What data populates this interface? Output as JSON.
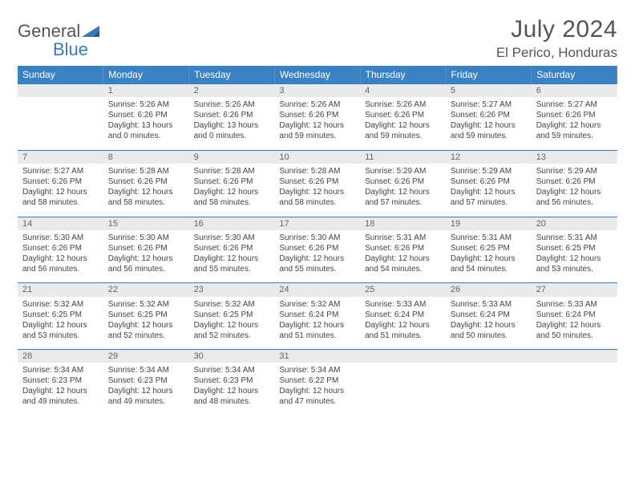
{
  "logo": {
    "part1": "General",
    "part2": "Blue"
  },
  "title": "July 2024",
  "location": "El Perico, Honduras",
  "colors": {
    "header_bg": "#3a82c4",
    "accent_line": "#3a7ab8",
    "daynum_bg": "#e9eaeb",
    "text": "#444",
    "muted": "#666"
  },
  "weekdays": [
    "Sunday",
    "Monday",
    "Tuesday",
    "Wednesday",
    "Thursday",
    "Friday",
    "Saturday"
  ],
  "weeks": [
    {
      "nums": [
        "",
        "1",
        "2",
        "3",
        "4",
        "5",
        "6"
      ],
      "cells": [
        null,
        {
          "sunrise": "5:26 AM",
          "sunset": "6:26 PM",
          "daylight": "13 hours and 0 minutes."
        },
        {
          "sunrise": "5:26 AM",
          "sunset": "6:26 PM",
          "daylight": "13 hours and 0 minutes."
        },
        {
          "sunrise": "5:26 AM",
          "sunset": "6:26 PM",
          "daylight": "12 hours and 59 minutes."
        },
        {
          "sunrise": "5:26 AM",
          "sunset": "6:26 PM",
          "daylight": "12 hours and 59 minutes."
        },
        {
          "sunrise": "5:27 AM",
          "sunset": "6:26 PM",
          "daylight": "12 hours and 59 minutes."
        },
        {
          "sunrise": "5:27 AM",
          "sunset": "6:26 PM",
          "daylight": "12 hours and 59 minutes."
        }
      ]
    },
    {
      "nums": [
        "7",
        "8",
        "9",
        "10",
        "11",
        "12",
        "13"
      ],
      "cells": [
        {
          "sunrise": "5:27 AM",
          "sunset": "6:26 PM",
          "daylight": "12 hours and 58 minutes."
        },
        {
          "sunrise": "5:28 AM",
          "sunset": "6:26 PM",
          "daylight": "12 hours and 58 minutes."
        },
        {
          "sunrise": "5:28 AM",
          "sunset": "6:26 PM",
          "daylight": "12 hours and 58 minutes."
        },
        {
          "sunrise": "5:28 AM",
          "sunset": "6:26 PM",
          "daylight": "12 hours and 58 minutes."
        },
        {
          "sunrise": "5:29 AM",
          "sunset": "6:26 PM",
          "daylight": "12 hours and 57 minutes."
        },
        {
          "sunrise": "5:29 AM",
          "sunset": "6:26 PM",
          "daylight": "12 hours and 57 minutes."
        },
        {
          "sunrise": "5:29 AM",
          "sunset": "6:26 PM",
          "daylight": "12 hours and 56 minutes."
        }
      ]
    },
    {
      "nums": [
        "14",
        "15",
        "16",
        "17",
        "18",
        "19",
        "20"
      ],
      "cells": [
        {
          "sunrise": "5:30 AM",
          "sunset": "6:26 PM",
          "daylight": "12 hours and 56 minutes."
        },
        {
          "sunrise": "5:30 AM",
          "sunset": "6:26 PM",
          "daylight": "12 hours and 56 minutes."
        },
        {
          "sunrise": "5:30 AM",
          "sunset": "6:26 PM",
          "daylight": "12 hours and 55 minutes."
        },
        {
          "sunrise": "5:30 AM",
          "sunset": "6:26 PM",
          "daylight": "12 hours and 55 minutes."
        },
        {
          "sunrise": "5:31 AM",
          "sunset": "6:26 PM",
          "daylight": "12 hours and 54 minutes."
        },
        {
          "sunrise": "5:31 AM",
          "sunset": "6:25 PM",
          "daylight": "12 hours and 54 minutes."
        },
        {
          "sunrise": "5:31 AM",
          "sunset": "6:25 PM",
          "daylight": "12 hours and 53 minutes."
        }
      ]
    },
    {
      "nums": [
        "21",
        "22",
        "23",
        "24",
        "25",
        "26",
        "27"
      ],
      "cells": [
        {
          "sunrise": "5:32 AM",
          "sunset": "6:25 PM",
          "daylight": "12 hours and 53 minutes."
        },
        {
          "sunrise": "5:32 AM",
          "sunset": "6:25 PM",
          "daylight": "12 hours and 52 minutes."
        },
        {
          "sunrise": "5:32 AM",
          "sunset": "6:25 PM",
          "daylight": "12 hours and 52 minutes."
        },
        {
          "sunrise": "5:32 AM",
          "sunset": "6:24 PM",
          "daylight": "12 hours and 51 minutes."
        },
        {
          "sunrise": "5:33 AM",
          "sunset": "6:24 PM",
          "daylight": "12 hours and 51 minutes."
        },
        {
          "sunrise": "5:33 AM",
          "sunset": "6:24 PM",
          "daylight": "12 hours and 50 minutes."
        },
        {
          "sunrise": "5:33 AM",
          "sunset": "6:24 PM",
          "daylight": "12 hours and 50 minutes."
        }
      ]
    },
    {
      "nums": [
        "28",
        "29",
        "30",
        "31",
        "",
        "",
        ""
      ],
      "cells": [
        {
          "sunrise": "5:34 AM",
          "sunset": "6:23 PM",
          "daylight": "12 hours and 49 minutes."
        },
        {
          "sunrise": "5:34 AM",
          "sunset": "6:23 PM",
          "daylight": "12 hours and 49 minutes."
        },
        {
          "sunrise": "5:34 AM",
          "sunset": "6:23 PM",
          "daylight": "12 hours and 48 minutes."
        },
        {
          "sunrise": "5:34 AM",
          "sunset": "6:22 PM",
          "daylight": "12 hours and 47 minutes."
        },
        null,
        null,
        null
      ]
    }
  ],
  "labels": {
    "sunrise": "Sunrise: ",
    "sunset": "Sunset: ",
    "daylight": "Daylight: "
  }
}
